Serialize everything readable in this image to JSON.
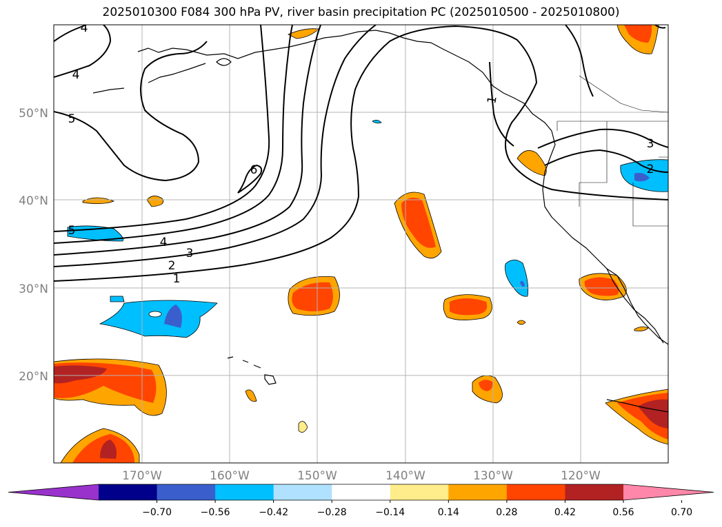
{
  "title": "2025010300 F084 300 hPa PV, river basin precipitation PC (2025010500 - 2025010800)",
  "map": {
    "projection": "PlateCarree",
    "extent": {
      "lon": [
        -180,
        -110
      ],
      "lat": [
        10,
        60
      ]
    },
    "gridlines": true,
    "lat_labels": [
      "20°N",
      "30°N",
      "40°N",
      "50°N"
    ],
    "lon_labels": [
      "170°W",
      "160°W",
      "150°W",
      "140°W",
      "130°W",
      "120°W"
    ]
  },
  "contours": {
    "field": "300 hPa PV",
    "labels": [
      "1",
      "2",
      "3",
      "4",
      "5",
      "4",
      "5",
      "4",
      "6",
      "1",
      "3",
      "2"
    ]
  },
  "colorbar": {
    "orientation": "horizontal",
    "extend": "both",
    "colors": [
      "#9932cc",
      "#00008b",
      "#3a5fcd",
      "#00bfff",
      "#b0e2ff",
      "#ffffff",
      "#ffec8b",
      "#ffa500",
      "#ff4500",
      "#b22222",
      "#ff88aa"
    ],
    "ticks": [
      "−0.70",
      "−0.56",
      "−0.42",
      "−0.28",
      "−0.14",
      "0.14",
      "0.28",
      "0.42",
      "0.56",
      "0.70"
    ]
  }
}
